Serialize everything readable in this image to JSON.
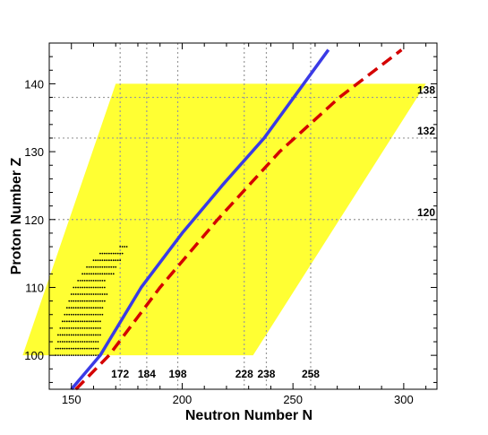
{
  "chart_data": {
    "type": "scatter",
    "xlabel": "Neutron Number N",
    "ylabel": "Proton Number Z",
    "xlim": [
      140,
      315
    ],
    "ylim": [
      95,
      146
    ],
    "x_ticks": [
      150,
      200,
      250,
      300
    ],
    "y_ticks": [
      100,
      110,
      120,
      130,
      140
    ],
    "grid": "off",
    "magic_neutron_lines": [
      172,
      184,
      198,
      228,
      238,
      258
    ],
    "magic_proton_lines": [
      120,
      132,
      138
    ],
    "x_magic_labels": [
      "172",
      "184",
      "198",
      "228",
      "238",
      "258"
    ],
    "y_magic_labels": [
      "120",
      "132",
      "138"
    ],
    "region": {
      "color": "#ffff33",
      "polygon": [
        [
          128,
          100
        ],
        [
          232,
          100
        ],
        [
          310,
          140
        ],
        [
          170,
          140
        ]
      ]
    },
    "series": [
      {
        "kind": "line",
        "style": "solid",
        "color": "#3a3ae6",
        "points": [
          [
            150,
            95
          ],
          [
            163,
            100
          ],
          [
            181.5,
            110
          ],
          [
            200,
            118
          ],
          [
            218,
            125
          ],
          [
            237,
            132
          ],
          [
            266,
            145
          ]
        ]
      },
      {
        "kind": "line",
        "style": "dashed",
        "color": "#d40000",
        "points": [
          [
            152,
            95
          ],
          [
            167,
            100
          ],
          [
            190,
            110
          ],
          [
            216,
            120
          ],
          [
            244,
            130
          ],
          [
            271,
            138
          ],
          [
            299,
            145
          ]
        ]
      },
      {
        "kind": "scatter",
        "color": "#000000",
        "rows": [
          {
            "z": 100,
            "n": [
              143,
              163
            ]
          },
          {
            "z": 101,
            "n": [
              143,
              162
            ]
          },
          {
            "z": 102,
            "n": [
              144,
              162
            ]
          },
          {
            "z": 103,
            "n": [
              144,
              163
            ]
          },
          {
            "z": 104,
            "n": [
              145,
              163
            ]
          },
          {
            "z": 105,
            "n": [
              146,
              163
            ]
          },
          {
            "z": 106,
            "n": [
              147,
              164
            ]
          },
          {
            "z": 107,
            "n": [
              148,
              164
            ]
          },
          {
            "z": 108,
            "n": [
              149,
              165
            ]
          },
          {
            "z": 109,
            "n": [
              150,
              166
            ]
          },
          {
            "z": 110,
            "n": [
              151,
              165
            ]
          },
          {
            "z": 111,
            "n": [
              153,
              165
            ]
          },
          {
            "z": 112,
            "n": [
              155,
              169
            ]
          },
          {
            "z": 113,
            "n": [
              157,
              170
            ]
          },
          {
            "z": 114,
            "n": [
              160,
              172
            ]
          },
          {
            "z": 115,
            "n": [
              163,
              173
            ]
          },
          {
            "z": 116,
            "n": [
              172,
              175
            ]
          }
        ]
      }
    ]
  }
}
